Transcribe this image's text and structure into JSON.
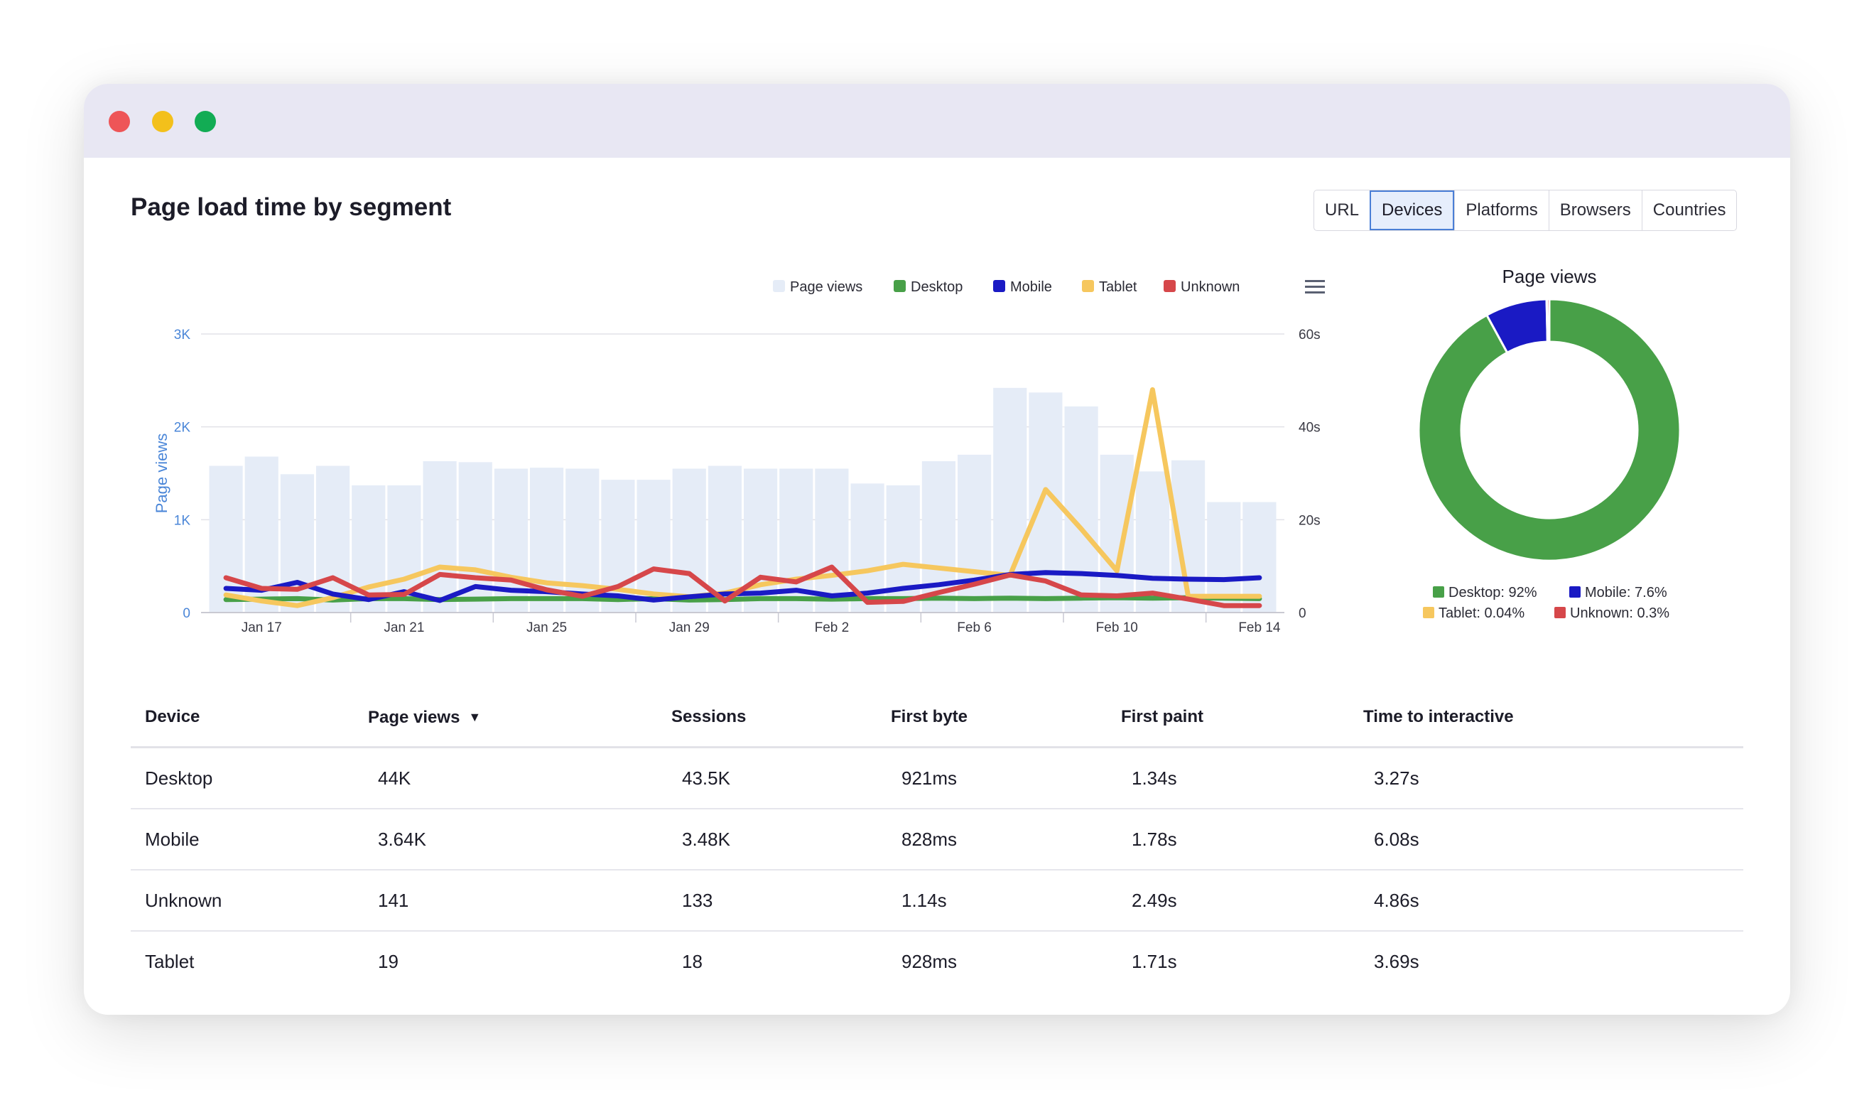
{
  "window": {
    "controls": [
      "close",
      "minimize",
      "maximize"
    ]
  },
  "header": {
    "title": "Page load time by segment"
  },
  "tabs": [
    {
      "label": "URL",
      "active": false
    },
    {
      "label": "Devices",
      "active": true
    },
    {
      "label": "Platforms",
      "active": false
    },
    {
      "label": "Browsers",
      "active": false
    },
    {
      "label": "Countries",
      "active": false
    }
  ],
  "colors": {
    "page_views": "#e5ecf7",
    "desktop": "#48a048",
    "mobile": "#1a1ac4",
    "tablet": "#f6c75e",
    "unknown": "#d6474a",
    "accent": "#4a7fd6"
  },
  "chart_menu_icon": "hamburger-menu-icon",
  "chart_data": [
    {
      "type": "bar+line",
      "title": "",
      "legend": [
        "Page views",
        "Desktop",
        "Mobile",
        "Tablet",
        "Unknown"
      ],
      "legend_position": "top-right",
      "ylabel_left": "Page views",
      "ylabel_right": "",
      "yticks_left": [
        "0",
        "1K",
        "2K",
        "3K"
      ],
      "ylim_left": [
        0,
        3000
      ],
      "yticks_right": [
        "0",
        "20s",
        "40s",
        "60s"
      ],
      "ylim_right": [
        0,
        60
      ],
      "xticks": [
        "Jan 17",
        "Jan 21",
        "Jan 25",
        "Jan 29",
        "Feb 2",
        "Feb 6",
        "Feb 10",
        "Feb 14"
      ],
      "x": [
        "Jan 16",
        "Jan 17",
        "Jan 18",
        "Jan 19",
        "Jan 20",
        "Jan 21",
        "Jan 22",
        "Jan 23",
        "Jan 24",
        "Jan 25",
        "Jan 26",
        "Jan 27",
        "Jan 28",
        "Jan 29",
        "Jan 30",
        "Jan 31",
        "Feb 1",
        "Feb 2",
        "Feb 3",
        "Feb 4",
        "Feb 5",
        "Feb 6",
        "Feb 7",
        "Feb 8",
        "Feb 9",
        "Feb 10",
        "Feb 11",
        "Feb 12",
        "Feb 13",
        "Feb 14"
      ],
      "grid": true,
      "series": [
        {
          "name": "Page views",
          "kind": "bar",
          "axis": "left",
          "values": [
            1580,
            1680,
            1490,
            1580,
            1370,
            1370,
            1630,
            1620,
            1550,
            1560,
            1550,
            1430,
            1430,
            1550,
            1580,
            1550,
            1550,
            1550,
            1390,
            1370,
            1630,
            1700,
            2420,
            2370,
            2220,
            1700,
            1520,
            1640,
            1190,
            1190
          ]
        },
        {
          "name": "Desktop",
          "kind": "line",
          "axis": "right",
          "values": [
            2.8,
            2.9,
            3.0,
            2.7,
            3.0,
            3.0,
            2.8,
            2.9,
            3.0,
            3.0,
            3.0,
            2.8,
            3.0,
            2.7,
            2.8,
            3.0,
            3.0,
            2.9,
            3.0,
            3.0,
            3.1,
            3.0,
            3.1,
            3.0,
            3.1,
            3.2,
            3.1,
            3.2,
            3.1,
            3.0
          ]
        },
        {
          "name": "Mobile",
          "kind": "line",
          "axis": "right",
          "values": [
            5.2,
            4.8,
            6.5,
            4.0,
            2.8,
            4.5,
            2.6,
            5.6,
            4.8,
            4.5,
            4.0,
            3.6,
            2.7,
            3.4,
            4.0,
            4.2,
            4.8,
            3.6,
            4.2,
            5.2,
            6.0,
            7.0,
            8.2,
            8.6,
            8.4,
            8.0,
            7.4,
            7.2,
            7.1,
            7.5
          ]
        },
        {
          "name": "Tablet",
          "kind": "line",
          "axis": "right",
          "values": [
            3.8,
            2.5,
            1.5,
            3.2,
            5.5,
            7.2,
            9.8,
            9.2,
            7.6,
            6.4,
            5.8,
            5.0,
            4.0,
            3.4,
            4.2,
            6.0,
            7.2,
            8.0,
            9.0,
            10.4,
            9.6,
            8.8,
            8.0,
            26.5,
            18.0,
            9.0,
            48.0,
            3.5,
            3.5,
            3.5
          ]
        },
        {
          "name": "Unknown",
          "kind": "line",
          "axis": "right",
          "values": [
            7.5,
            5.2,
            5.0,
            7.5,
            3.8,
            3.9,
            8.2,
            7.5,
            7.0,
            4.9,
            3.5,
            5.6,
            9.4,
            8.4,
            2.5,
            7.6,
            6.6,
            9.8,
            2.2,
            2.4,
            4.3,
            6.1,
            8.1,
            6.8,
            3.8,
            3.6,
            4.2,
            2.9,
            1.5,
            1.5
          ]
        }
      ]
    },
    {
      "type": "pie",
      "title": "Page views",
      "categories": [
        "Desktop",
        "Mobile",
        "Tablet",
        "Unknown"
      ],
      "values": [
        92,
        7.6,
        0.04,
        0.3
      ],
      "legend": [
        "Desktop: 92%",
        "Mobile: 7.6%",
        "Tablet: 0.04%",
        "Unknown: 0.3%"
      ],
      "legend_position": "bottom"
    }
  ],
  "table": {
    "columns": [
      "Device",
      "Page views",
      "Sessions",
      "First byte",
      "First paint",
      "Time to interactive"
    ],
    "sort_icon": "chevron-down-icon",
    "rows": [
      [
        "Desktop",
        "44K",
        "43.5K",
        "921ms",
        "1.34s",
        "3.27s"
      ],
      [
        "Mobile",
        "3.64K",
        "3.48K",
        "828ms",
        "1.78s",
        "6.08s"
      ],
      [
        "Unknown",
        "141",
        "133",
        "1.14s",
        "2.49s",
        "4.86s"
      ],
      [
        "Tablet",
        "19",
        "18",
        "928ms",
        "1.71s",
        "3.69s"
      ]
    ]
  }
}
